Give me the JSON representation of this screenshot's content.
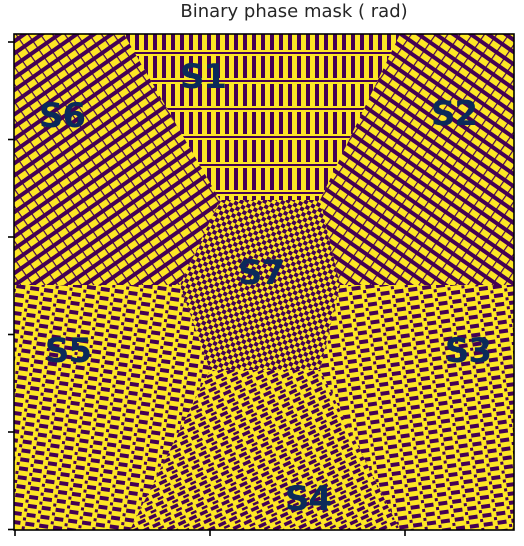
{
  "chart_data": {
    "type": "heatmap",
    "title": "Binary phase mask ( rad)",
    "xlabel": "",
    "ylabel": "",
    "colormap": "viridis",
    "colors": {
      "low": "#440154",
      "high": "#fde725",
      "label": "#0b2a5a",
      "axis": "#000000"
    },
    "values_range": [
      0,
      1
    ],
    "regions": [
      {
        "label": "S1",
        "angle_deg": 90,
        "stripe_pattern": "vertical-fine"
      },
      {
        "label": "S2",
        "angle_deg": 30,
        "stripe_pattern": "diagonal-fine"
      },
      {
        "label": "S3",
        "angle_deg": -30,
        "stripe_pattern": "horizontal-dashed"
      },
      {
        "label": "S4",
        "angle_deg": -90,
        "stripe_pattern": "diagonal-dashed"
      },
      {
        "label": "S5",
        "angle_deg": 210,
        "stripe_pattern": "horizontal-dashed"
      },
      {
        "label": "S6",
        "angle_deg": 150,
        "stripe_pattern": "diagonal-fine"
      },
      {
        "label": "S7",
        "angle_deg": null,
        "stripe_pattern": "checker"
      }
    ],
    "x_ticks": 3,
    "y_ticks": 6,
    "tick_labels": [],
    "grid": false,
    "legend": "none"
  }
}
